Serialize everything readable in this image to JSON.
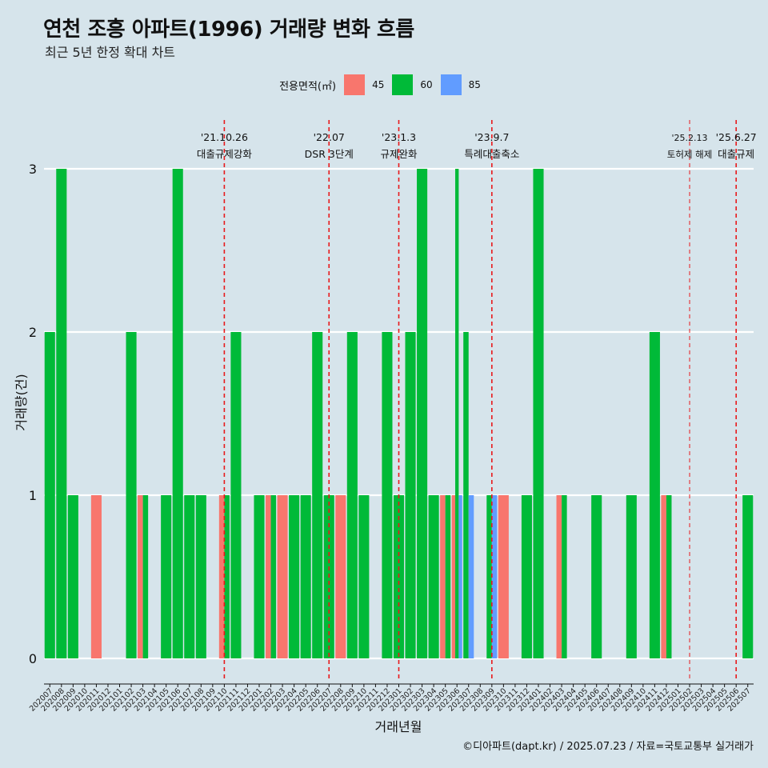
{
  "title": "연천 조흥 아파트(1996) 거래량 변화 흐름",
  "subtitle": "최근 5년 한정 확대 차트",
  "caption": "©디아파트(dapt.kr) / 2025.07.23 / 자료=국토교통부 실거래가",
  "legend": {
    "title": "전용면적(㎡)",
    "items": [
      {
        "label": "45",
        "color": "#f8766d"
      },
      {
        "label": "60",
        "color": "#00ba38"
      },
      {
        "label": "85",
        "color": "#619cff"
      }
    ]
  },
  "chart_data": {
    "type": "bar",
    "xlabel": "거래년월",
    "ylabel": "거래량(건)",
    "ylim": [
      0,
      3
    ],
    "yticks": [
      0,
      1,
      2,
      3
    ],
    "grid": true,
    "categories": [
      "202007",
      "202008",
      "202009",
      "202010",
      "202011",
      "202012",
      "202101",
      "202102",
      "202103",
      "202104",
      "202105",
      "202106",
      "202107",
      "202108",
      "202109",
      "202110",
      "202111",
      "202112",
      "202201",
      "202202",
      "202203",
      "202204",
      "202205",
      "202206",
      "202207",
      "202208",
      "202209",
      "202210",
      "202211",
      "202212",
      "202301",
      "202302",
      "202303",
      "202304",
      "202305",
      "202306",
      "202307",
      "202308",
      "202309",
      "202310",
      "202311",
      "202312",
      "202401",
      "202402",
      "202403",
      "202404",
      "202405",
      "202406",
      "202407",
      "202408",
      "202409",
      "202410",
      "202411",
      "202412",
      "202501",
      "202502",
      "202503",
      "202504",
      "202505",
      "202506",
      "202507"
    ],
    "series": [
      {
        "name": "45",
        "color": "#f8766d",
        "values": [
          0,
          0,
          0,
          0,
          1,
          0,
          0,
          0,
          1,
          0,
          0,
          0,
          0,
          0,
          0,
          1,
          0,
          0,
          0,
          1,
          1,
          0,
          0,
          0,
          0,
          1,
          0,
          0,
          0,
          0,
          0,
          0,
          0,
          0,
          1,
          1,
          0,
          0,
          0,
          1,
          0,
          0,
          0,
          0,
          1,
          0,
          0,
          0,
          0,
          0,
          0,
          0,
          0,
          1,
          0,
          0,
          0,
          0,
          0,
          0,
          0
        ]
      },
      {
        "name": "60",
        "color": "#00ba38",
        "values": [
          2,
          3,
          1,
          0,
          0,
          0,
          0,
          2,
          1,
          0,
          1,
          3,
          1,
          1,
          0,
          1,
          2,
          0,
          1,
          1,
          0,
          1,
          1,
          2,
          1,
          0,
          2,
          1,
          0,
          2,
          1,
          2,
          3,
          1,
          1,
          3,
          2,
          0,
          1,
          0,
          0,
          1,
          3,
          0,
          1,
          0,
          0,
          1,
          0,
          0,
          1,
          0,
          2,
          1,
          0,
          0,
          0,
          0,
          0,
          0,
          1
        ]
      },
      {
        "name": "85",
        "color": "#619cff",
        "values": [
          0,
          0,
          0,
          0,
          0,
          0,
          0,
          0,
          0,
          0,
          0,
          0,
          0,
          0,
          0,
          0,
          0,
          0,
          0,
          0,
          0,
          0,
          0,
          0,
          0,
          0,
          0,
          0,
          0,
          0,
          0,
          0,
          0,
          0,
          0,
          1,
          1,
          0,
          1,
          0,
          0,
          0,
          0,
          0,
          0,
          0,
          0,
          0,
          0,
          0,
          0,
          0,
          0,
          0,
          0,
          0,
          0,
          0,
          0,
          0,
          0
        ]
      }
    ],
    "annotations": [
      {
        "date": "'21.10.26",
        "label": "대출규제강화",
        "category": "202110"
      },
      {
        "date": "'22.07",
        "label": "DSR 3단계",
        "category": "202207"
      },
      {
        "date": "'23.1.3",
        "label": "규제완화",
        "category": "202301"
      },
      {
        "date": "'23.9.7",
        "label": "특례대출축소",
        "category": "202309"
      },
      {
        "date": "'25.2.13",
        "label": "토허제 해제",
        "category": "202502"
      },
      {
        "date": "'25.6.27",
        "label": "대출규제",
        "category": "202506"
      }
    ]
  }
}
